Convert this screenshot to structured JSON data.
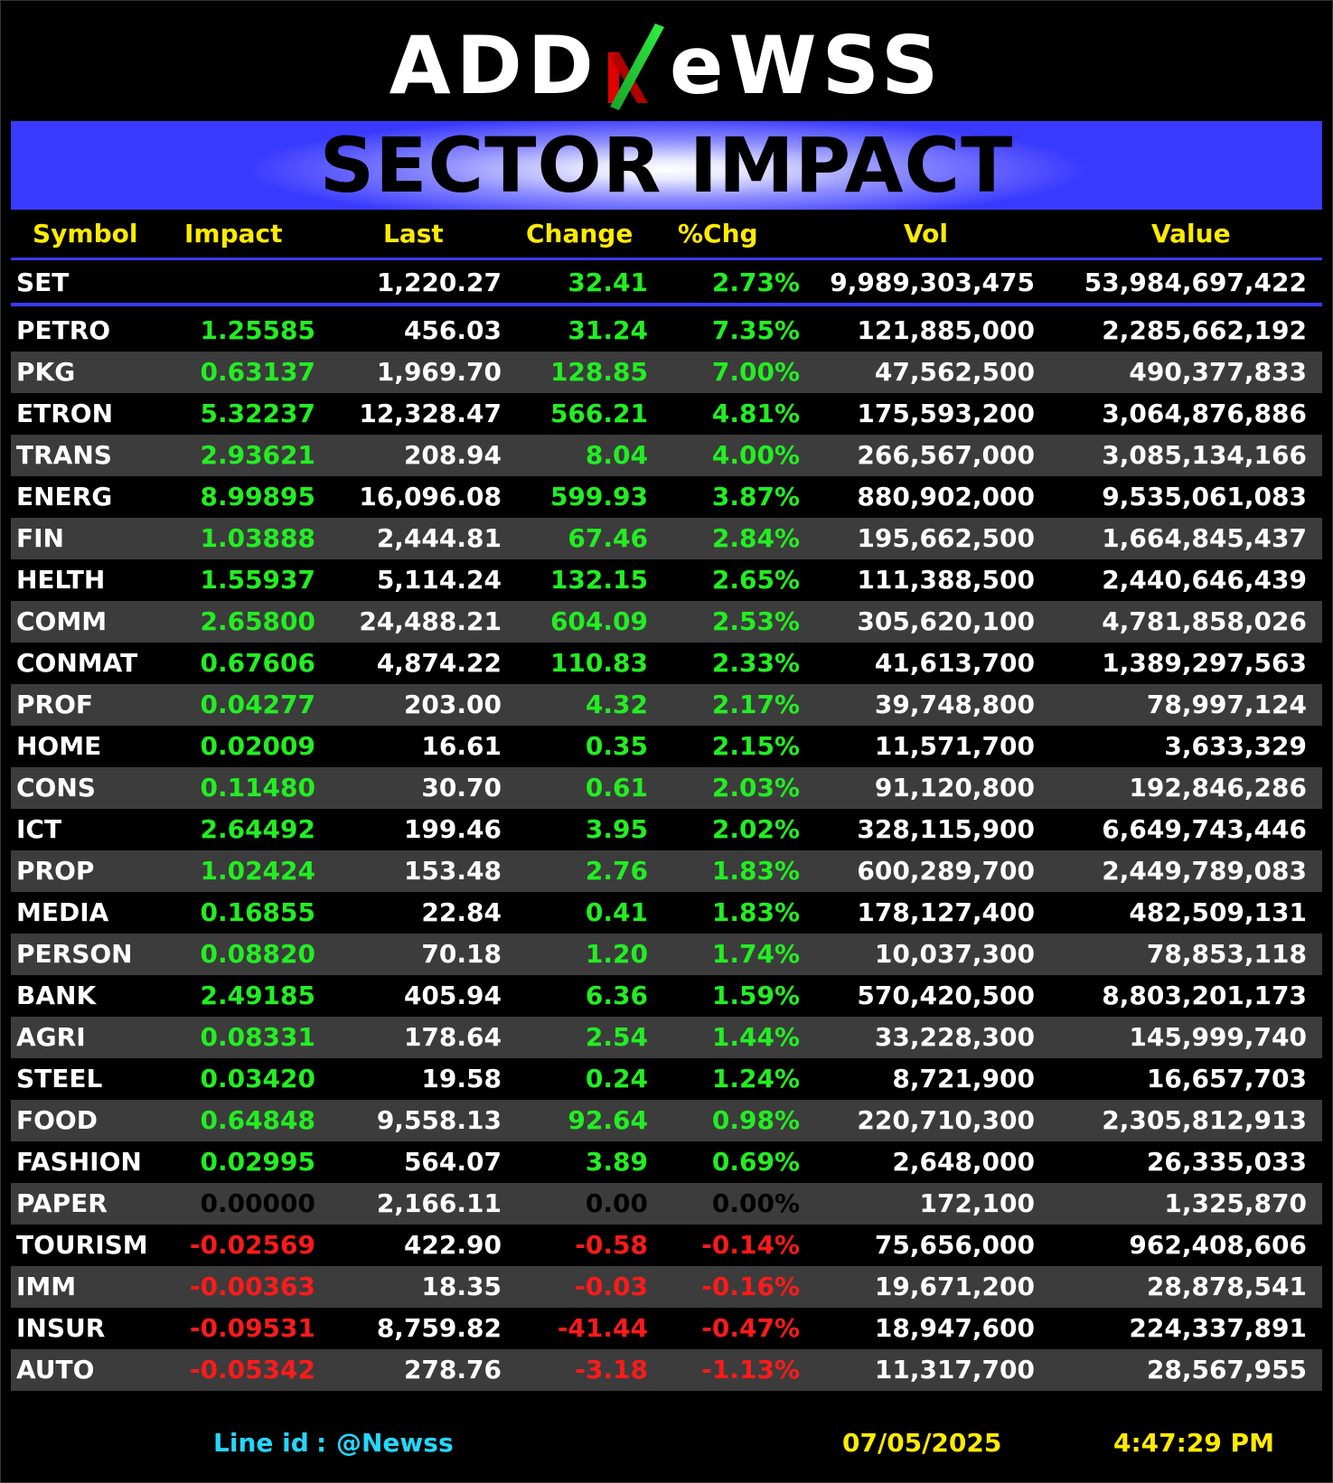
{
  "logo": {
    "text_left": "ADD",
    "text_n": "N",
    "text_right": "eWSS"
  },
  "banner": {
    "title": "SECTOR IMPACT"
  },
  "colors": {
    "accent_blue": "#3a3aff",
    "header_yellow": "#ffeb00",
    "positive": "#22ee22",
    "negative": "#ff1a1a",
    "footer_cyan": "#22d8ff"
  },
  "columns": [
    "Symbol",
    "Impact",
    "Last",
    "Change",
    "%Chg",
    "Vol",
    "Value"
  ],
  "index_row": {
    "symbol": "SET",
    "impact": "",
    "last": "1,220.27",
    "change": "32.41",
    "pct": "2.73%",
    "vol": "9,989,303,475",
    "value": "53,984,697,422",
    "trend": "pos"
  },
  "rows": [
    {
      "symbol": "PETRO",
      "impact": "1.25585",
      "last": "456.03",
      "change": "31.24",
      "pct": "7.35%",
      "vol": "121,885,000",
      "value": "2,285,662,192",
      "trend": "pos"
    },
    {
      "symbol": "PKG",
      "impact": "0.63137",
      "last": "1,969.70",
      "change": "128.85",
      "pct": "7.00%",
      "vol": "47,562,500",
      "value": "490,377,833",
      "trend": "pos"
    },
    {
      "symbol": "ETRON",
      "impact": "5.32237",
      "last": "12,328.47",
      "change": "566.21",
      "pct": "4.81%",
      "vol": "175,593,200",
      "value": "3,064,876,886",
      "trend": "pos"
    },
    {
      "symbol": "TRANS",
      "impact": "2.93621",
      "last": "208.94",
      "change": "8.04",
      "pct": "4.00%",
      "vol": "266,567,000",
      "value": "3,085,134,166",
      "trend": "pos"
    },
    {
      "symbol": "ENERG",
      "impact": "8.99895",
      "last": "16,096.08",
      "change": "599.93",
      "pct": "3.87%",
      "vol": "880,902,000",
      "value": "9,535,061,083",
      "trend": "pos"
    },
    {
      "symbol": "FIN",
      "impact": "1.03888",
      "last": "2,444.81",
      "change": "67.46",
      "pct": "2.84%",
      "vol": "195,662,500",
      "value": "1,664,845,437",
      "trend": "pos"
    },
    {
      "symbol": "HELTH",
      "impact": "1.55937",
      "last": "5,114.24",
      "change": "132.15",
      "pct": "2.65%",
      "vol": "111,388,500",
      "value": "2,440,646,439",
      "trend": "pos"
    },
    {
      "symbol": "COMM",
      "impact": "2.65800",
      "last": "24,488.21",
      "change": "604.09",
      "pct": "2.53%",
      "vol": "305,620,100",
      "value": "4,781,858,026",
      "trend": "pos"
    },
    {
      "symbol": "CONMAT",
      "impact": "0.67606",
      "last": "4,874.22",
      "change": "110.83",
      "pct": "2.33%",
      "vol": "41,613,700",
      "value": "1,389,297,563",
      "trend": "pos"
    },
    {
      "symbol": "PROF",
      "impact": "0.04277",
      "last": "203.00",
      "change": "4.32",
      "pct": "2.17%",
      "vol": "39,748,800",
      "value": "78,997,124",
      "trend": "pos"
    },
    {
      "symbol": "HOME",
      "impact": "0.02009",
      "last": "16.61",
      "change": "0.35",
      "pct": "2.15%",
      "vol": "11,571,700",
      "value": "3,633,329",
      "trend": "pos"
    },
    {
      "symbol": "CONS",
      "impact": "0.11480",
      "last": "30.70",
      "change": "0.61",
      "pct": "2.03%",
      "vol": "91,120,800",
      "value": "192,846,286",
      "trend": "pos"
    },
    {
      "symbol": "ICT",
      "impact": "2.64492",
      "last": "199.46",
      "change": "3.95",
      "pct": "2.02%",
      "vol": "328,115,900",
      "value": "6,649,743,446",
      "trend": "pos"
    },
    {
      "symbol": "PROP",
      "impact": "1.02424",
      "last": "153.48",
      "change": "2.76",
      "pct": "1.83%",
      "vol": "600,289,700",
      "value": "2,449,789,083",
      "trend": "pos"
    },
    {
      "symbol": "MEDIA",
      "impact": "0.16855",
      "last": "22.84",
      "change": "0.41",
      "pct": "1.83%",
      "vol": "178,127,400",
      "value": "482,509,131",
      "trend": "pos"
    },
    {
      "symbol": "PERSON",
      "impact": "0.08820",
      "last": "70.18",
      "change": "1.20",
      "pct": "1.74%",
      "vol": "10,037,300",
      "value": "78,853,118",
      "trend": "pos"
    },
    {
      "symbol": "BANK",
      "impact": "2.49185",
      "last": "405.94",
      "change": "6.36",
      "pct": "1.59%",
      "vol": "570,420,500",
      "value": "8,803,201,173",
      "trend": "pos"
    },
    {
      "symbol": "AGRI",
      "impact": "0.08331",
      "last": "178.64",
      "change": "2.54",
      "pct": "1.44%",
      "vol": "33,228,300",
      "value": "145,999,740",
      "trend": "pos"
    },
    {
      "symbol": "STEEL",
      "impact": "0.03420",
      "last": "19.58",
      "change": "0.24",
      "pct": "1.24%",
      "vol": "8,721,900",
      "value": "16,657,703",
      "trend": "pos"
    },
    {
      "symbol": "FOOD",
      "impact": "0.64848",
      "last": "9,558.13",
      "change": "92.64",
      "pct": "0.98%",
      "vol": "220,710,300",
      "value": "2,305,812,913",
      "trend": "pos"
    },
    {
      "symbol": "FASHION",
      "impact": "0.02995",
      "last": "564.07",
      "change": "3.89",
      "pct": "0.69%",
      "vol": "2,648,000",
      "value": "26,335,033",
      "trend": "pos"
    },
    {
      "symbol": "PAPER",
      "impact": "0.00000",
      "last": "2,166.11",
      "change": "0.00",
      "pct": "0.00%",
      "vol": "172,100",
      "value": "1,325,870",
      "trend": "zero"
    },
    {
      "symbol": "TOURISM",
      "impact": "-0.02569",
      "last": "422.90",
      "change": "-0.58",
      "pct": "-0.14%",
      "vol": "75,656,000",
      "value": "962,408,606",
      "trend": "neg"
    },
    {
      "symbol": "IMM",
      "impact": "-0.00363",
      "last": "18.35",
      "change": "-0.03",
      "pct": "-0.16%",
      "vol": "19,671,200",
      "value": "28,878,541",
      "trend": "neg"
    },
    {
      "symbol": "INSUR",
      "impact": "-0.09531",
      "last": "8,759.82",
      "change": "-41.44",
      "pct": "-0.47%",
      "vol": "18,947,600",
      "value": "224,337,891",
      "trend": "neg"
    },
    {
      "symbol": "AUTO",
      "impact": "-0.05342",
      "last": "278.76",
      "change": "-3.18",
      "pct": "-1.13%",
      "vol": "11,317,700",
      "value": "28,567,955",
      "trend": "neg"
    }
  ],
  "footer": {
    "line_label": "Line id",
    "line_sep": ":",
    "line_id": "@Newss",
    "date": "07/05/2025",
    "time": "4:47:29 PM"
  }
}
